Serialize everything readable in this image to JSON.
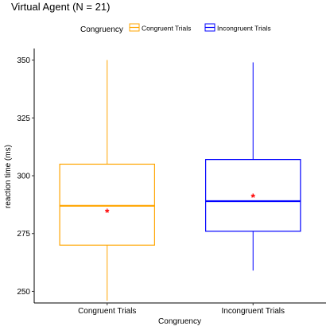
{
  "chart_data": {
    "type": "box",
    "title": "Virtual Agent (N = 21)",
    "xlabel": "Congruency",
    "ylabel": "reaction time (ms)",
    "ylim": [
      245,
      355
    ],
    "yticks": [
      250,
      275,
      300,
      325,
      350
    ],
    "grid": false,
    "legend": {
      "title": "Congruency",
      "placement": "top",
      "entries": [
        "Congruent Trials",
        "Incongruent Trials"
      ]
    },
    "categories": [
      "Congruent Trials",
      "Incongruent Trials"
    ],
    "series": [
      {
        "name": "Congruent Trials",
        "color": "#FFA500",
        "whisker_low": 246,
        "q1": 270,
        "median": 287,
        "q3": 305,
        "whisker_high": 350,
        "mean": 284.5
      },
      {
        "name": "Incongruent Trials",
        "color": "#0000FF",
        "whisker_low": 259,
        "q1": 276,
        "median": 289,
        "q3": 307,
        "whisker_high": 349,
        "mean": 291
      }
    ],
    "mean_marker": {
      "symbol": "*",
      "color": "#FF0000"
    }
  }
}
